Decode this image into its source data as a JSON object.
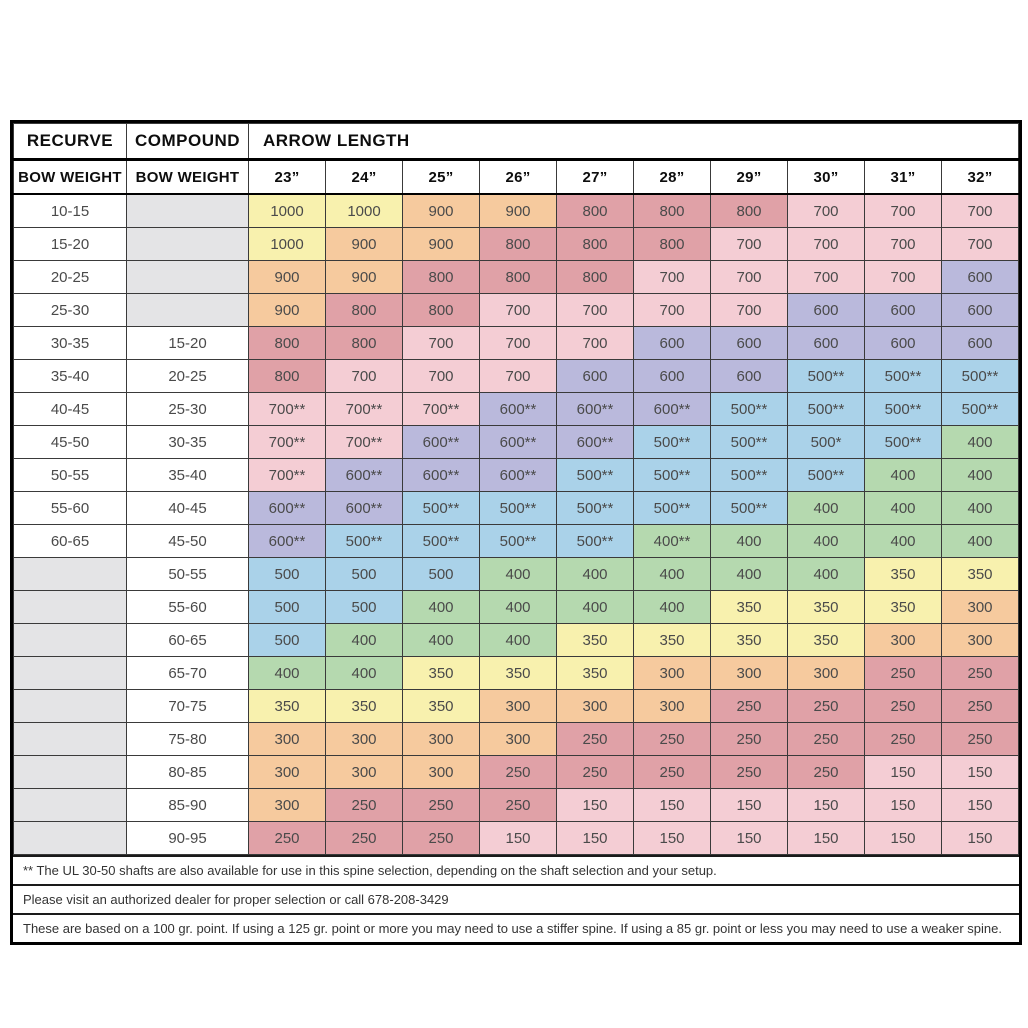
{
  "chart_data": {
    "type": "table",
    "header": {
      "recurve_title": "RECURVE",
      "compound_title": "COMPOUND",
      "arrow_length_title": "ARROW LENGTH",
      "recurve_subtitle": "BOW WEIGHT",
      "compound_subtitle": "BOW WEIGHT",
      "arrow_lengths": [
        "23”",
        "24”",
        "25”",
        "26”",
        "27”",
        "28”",
        "29”",
        "30”",
        "31”",
        "32”"
      ]
    },
    "rows": [
      {
        "recurve": "10-15",
        "compound": "",
        "values": [
          "1000",
          "1000",
          "900",
          "900",
          "800",
          "800",
          "800",
          "700",
          "700",
          "700"
        ]
      },
      {
        "recurve": "15-20",
        "compound": "",
        "values": [
          "1000",
          "900",
          "900",
          "800",
          "800",
          "800",
          "700",
          "700",
          "700",
          "700"
        ]
      },
      {
        "recurve": "20-25",
        "compound": "",
        "values": [
          "900",
          "900",
          "800",
          "800",
          "800",
          "700",
          "700",
          "700",
          "700",
          "600"
        ]
      },
      {
        "recurve": "25-30",
        "compound": "",
        "values": [
          "900",
          "800",
          "800",
          "700",
          "700",
          "700",
          "700",
          "600",
          "600",
          "600"
        ]
      },
      {
        "recurve": "30-35",
        "compound": "15-20",
        "values": [
          "800",
          "800",
          "700",
          "700",
          "700",
          "600",
          "600",
          "600",
          "600",
          "600"
        ]
      },
      {
        "recurve": "35-40",
        "compound": "20-25",
        "values": [
          "800",
          "700",
          "700",
          "700",
          "600",
          "600",
          "600",
          "500**",
          "500**",
          "500**"
        ]
      },
      {
        "recurve": "40-45",
        "compound": "25-30",
        "values": [
          "700**",
          "700**",
          "700**",
          "600**",
          "600**",
          "600**",
          "500**",
          "500**",
          "500**",
          "500**"
        ]
      },
      {
        "recurve": "45-50",
        "compound": "30-35",
        "values": [
          "700**",
          "700**",
          "600**",
          "600**",
          "600**",
          "500**",
          "500**",
          "500*",
          "500**",
          "400"
        ]
      },
      {
        "recurve": "50-55",
        "compound": "35-40",
        "values": [
          "700**",
          "600**",
          "600**",
          "600**",
          "500**",
          "500**",
          "500**",
          "500**",
          "400",
          "400"
        ]
      },
      {
        "recurve": "55-60",
        "compound": "40-45",
        "values": [
          "600**",
          "600**",
          "500**",
          "500**",
          "500**",
          "500**",
          "500**",
          "400",
          "400",
          "400"
        ]
      },
      {
        "recurve": "60-65",
        "compound": "45-50",
        "values": [
          "600**",
          "500**",
          "500**",
          "500**",
          "500**",
          "400**",
          "400",
          "400",
          "400",
          "400"
        ]
      },
      {
        "recurve": "",
        "compound": "50-55",
        "values": [
          "500",
          "500",
          "500",
          "400",
          "400",
          "400",
          "400",
          "400",
          "350",
          "350"
        ]
      },
      {
        "recurve": "",
        "compound": "55-60",
        "values": [
          "500",
          "500",
          "400",
          "400",
          "400",
          "400",
          "350",
          "350",
          "350",
          "300"
        ]
      },
      {
        "recurve": "",
        "compound": "60-65",
        "values": [
          "500",
          "400",
          "400",
          "400",
          "350",
          "350",
          "350",
          "350",
          "300",
          "300"
        ]
      },
      {
        "recurve": "",
        "compound": "65-70",
        "values": [
          "400",
          "400",
          "350",
          "350",
          "350",
          "300",
          "300",
          "300",
          "250",
          "250"
        ]
      },
      {
        "recurve": "",
        "compound": "70-75",
        "values": [
          "350",
          "350",
          "350",
          "300",
          "300",
          "300",
          "250",
          "250",
          "250",
          "250"
        ]
      },
      {
        "recurve": "",
        "compound": "75-80",
        "values": [
          "300",
          "300",
          "300",
          "300",
          "250",
          "250",
          "250",
          "250",
          "250",
          "250"
        ]
      },
      {
        "recurve": "",
        "compound": "80-85",
        "values": [
          "300",
          "300",
          "300",
          "250",
          "250",
          "250",
          "250",
          "250",
          "150",
          "150"
        ]
      },
      {
        "recurve": "",
        "compound": "85-90",
        "values": [
          "300",
          "250",
          "250",
          "250",
          "150",
          "150",
          "150",
          "150",
          "150",
          "150"
        ]
      },
      {
        "recurve": "",
        "compound": "90-95",
        "values": [
          "250",
          "250",
          "250",
          "150",
          "150",
          "150",
          "150",
          "150",
          "150",
          "150"
        ]
      }
    ],
    "footnotes": [
      "** The UL 30-50 shafts are also available for use in this spine selection, depending on the shaft selection and your setup.",
      "Please visit an authorized dealer for proper selection or call 678-208-3429",
      "These are based on a 100 gr. point. If using a 125 gr. point or more you may need to use a stiffer spine. If using a 85 gr. point or less you may need to use a weaker spine."
    ]
  },
  "colors": {
    "palette": {
      "yellow": "#f8f1ae",
      "peach": "#f6ca9e",
      "rose": "#e0a1a7",
      "pink": "#f4cdd4",
      "lavender": "#bab9dc",
      "blue": "#aad2e9",
      "green": "#b5d9af"
    },
    "spine_colors": {
      "1000": "yellow",
      "900": "peach",
      "800": "rose",
      "700": "pink",
      "600": "lavender",
      "500": "blue",
      "400": "green",
      "350": "yellow",
      "300": "peach",
      "250": "rose",
      "150": "pink"
    },
    "empty_cell": "#e4e4e6",
    "cell_text": "#4a4a4a",
    "header_text": "#0d0d0d",
    "grid_line": "#3a3a3a",
    "outer_border": "#000000"
  }
}
